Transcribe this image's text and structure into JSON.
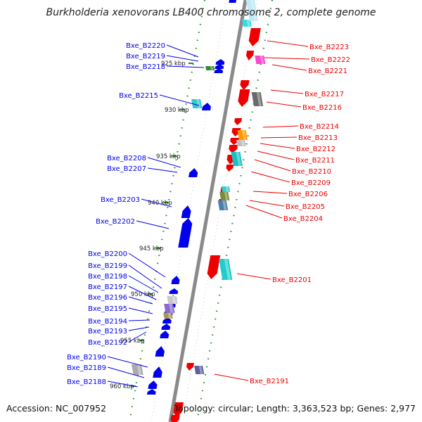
{
  "title": "Burkholderia xenovorans LB400 chromosome 2, complete genome",
  "accession": "Accession: NC_007952",
  "topology": "Topology: circular; Length: 3,363,523 bp; Genes: 2,977",
  "colors": {
    "forward": "#0000ee",
    "reverse": "#ee0000",
    "backbone": "#888888",
    "ticks": "#2a8a2a"
  },
  "scale_labels": [
    "925 kbp",
    "930 kbp",
    "935 kbp",
    "940 kbp",
    "945 kbp",
    "950 kbp",
    "955 kbp",
    "960 kbp"
  ],
  "left_genes": [
    "Bxe_B2220",
    "Bxe_B2219",
    "Bxe_B2218",
    "Bxe_B2215",
    "Bxe_B2208",
    "Bxe_B2207",
    "Bxe_B2203",
    "Bxe_B2202",
    "Bxe_B2200",
    "Bxe_B2199",
    "Bxe_B2198",
    "Bxe_B2197",
    "Bxe_B2196",
    "Bxe_B2195",
    "Bxe_B2194",
    "Bxe_B2193",
    "Bxe_B2192",
    "Bxe_B2190",
    "Bxe_B2189",
    "Bxe_B2188"
  ],
  "right_genes": [
    "Bxe_B2223",
    "Bxe_B2222",
    "Bxe_B2221",
    "Bxe_B2217",
    "Bxe_B2216",
    "Bxe_B2214",
    "Bxe_B2213",
    "Bxe_B2212",
    "Bxe_B2211",
    "Bxe_B2210",
    "Bxe_B2209",
    "Bxe_B2206",
    "Bxe_B2205",
    "Bxe_B2204",
    "Bxe_B2201",
    "Bxe_B2191"
  ]
}
